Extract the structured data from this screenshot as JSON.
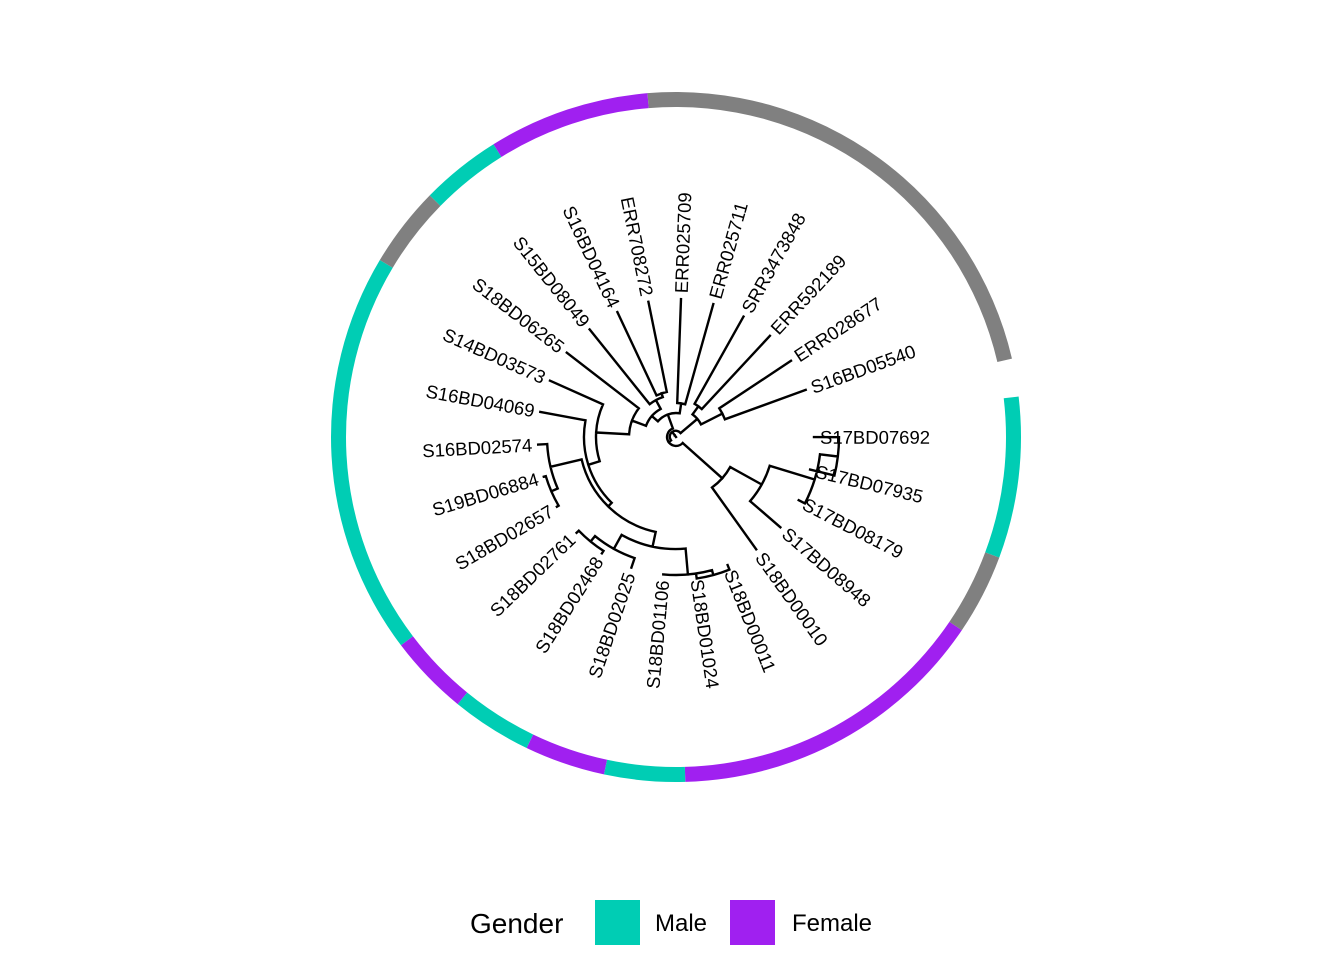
{
  "tips": [
    {
      "label": "S17BD07692",
      "gender": "Male"
    },
    {
      "label": "S17BD07935",
      "gender": "Male"
    },
    {
      "label": "S17BD08179",
      "gender": "unknown"
    },
    {
      "label": "S17BD08948",
      "gender": "Female"
    },
    {
      "label": "S18BD00010",
      "gender": "Female"
    },
    {
      "label": "S18BD00011",
      "gender": "Female"
    },
    {
      "label": "S18BD01024",
      "gender": "Female"
    },
    {
      "label": "S18BD01106",
      "gender": "Male"
    },
    {
      "label": "S18BD02025",
      "gender": "Female"
    },
    {
      "label": "S18BD02468",
      "gender": "Male"
    },
    {
      "label": "S18BD02761",
      "gender": "Female"
    },
    {
      "label": "S18BD02657",
      "gender": "Male"
    },
    {
      "label": "S19BD06884",
      "gender": "Male"
    },
    {
      "label": "S16BD02574",
      "gender": "Male"
    },
    {
      "label": "S16BD04069",
      "gender": "Male"
    },
    {
      "label": "S14BD03573",
      "gender": "Male"
    },
    {
      "label": "S18BD06265",
      "gender": "unknown"
    },
    {
      "label": "S15BD08049",
      "gender": "Male"
    },
    {
      "label": "S16BD04164",
      "gender": "Female"
    },
    {
      "label": "ERR708272",
      "gender": "Female"
    },
    {
      "label": "ERR025709",
      "gender": "unknown"
    },
    {
      "label": "ERR025711",
      "gender": "unknown"
    },
    {
      "label": "SRR3473848",
      "gender": "unknown"
    },
    {
      "label": "ERR592189",
      "gender": "unknown"
    },
    {
      "label": "ERR028677",
      "gender": "unknown"
    },
    {
      "label": "S16BD05540",
      "gender": "unknown"
    }
  ],
  "legend": {
    "title": "Gender",
    "items": [
      {
        "label": "Male",
        "color": "#00CDB4"
      },
      {
        "label": "Female",
        "color": "#A020F0"
      }
    ]
  },
  "colors": {
    "Male": "#00CDB4",
    "Female": "#A020F0",
    "unknown": "#808080",
    "branch": "#000000"
  }
}
